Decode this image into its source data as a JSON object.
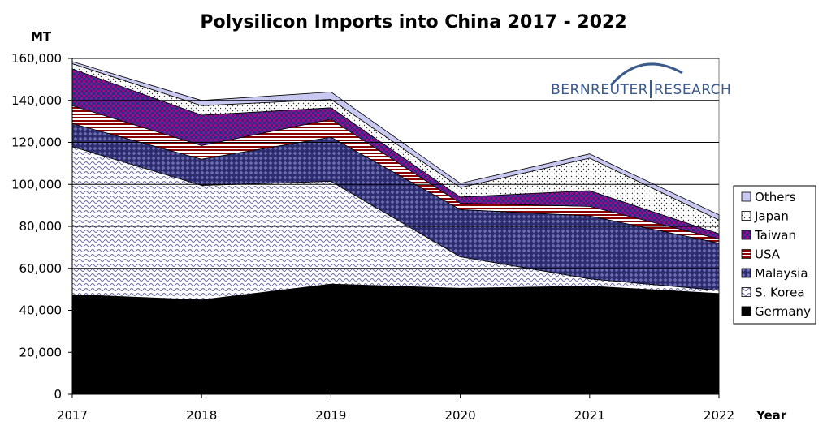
{
  "chart_data": {
    "type": "area",
    "stacked": true,
    "title": "Polysilicon Imports into China 2017 - 2022",
    "ylabel": "MT",
    "xlabel": "Year",
    "x": [
      "2017",
      "2018",
      "2019",
      "2020",
      "2021",
      "2022"
    ],
    "ylim": [
      0,
      160000
    ],
    "yticks": [
      "0",
      "20,000",
      "40,000",
      "60,000",
      "80,000",
      "100,000",
      "120,000",
      "140,000",
      "160,000"
    ],
    "grid": true,
    "legend_position": "right",
    "series": [
      {
        "name": "Germany",
        "values": [
          47500,
          45000,
          52500,
          50500,
          51500,
          48000
        ],
        "color": "#000000",
        "pattern": "solid"
      },
      {
        "name": "S. Korea",
        "values": [
          70500,
          54500,
          49000,
          15000,
          3500,
          1500
        ],
        "color": "#6a6aaa",
        "pattern": "wave"
      },
      {
        "name": "Malaysia",
        "values": [
          11000,
          12500,
          21000,
          22500,
          30000,
          22500
        ],
        "color": "#33337a",
        "pattern": "diamond"
      },
      {
        "name": "USA",
        "values": [
          8500,
          6500,
          8500,
          3000,
          4500,
          2000
        ],
        "color": "#800000",
        "pattern": "stripes"
      },
      {
        "name": "Taiwan",
        "values": [
          17500,
          14500,
          5500,
          3000,
          7500,
          2500
        ],
        "color": "#8b0a7a",
        "pattern": "checker"
      },
      {
        "name": "Japan",
        "values": [
          2500,
          4500,
          4000,
          4500,
          15500,
          6500
        ],
        "color": "#555555",
        "pattern": "dots"
      },
      {
        "name": "Others",
        "values": [
          1000,
          2500,
          3500,
          2000,
          2000,
          2500
        ],
        "color": "#c8c8f0",
        "pattern": "solid"
      }
    ],
    "legend_order": [
      "Others",
      "Japan",
      "Taiwan",
      "USA",
      "Malaysia",
      "S. Korea",
      "Germany"
    ]
  },
  "logo": {
    "left": "BERNREUTER",
    "right": "RESEARCH",
    "arc_color": "#3a5a8c",
    "text_color": "#3a5a8c"
  }
}
